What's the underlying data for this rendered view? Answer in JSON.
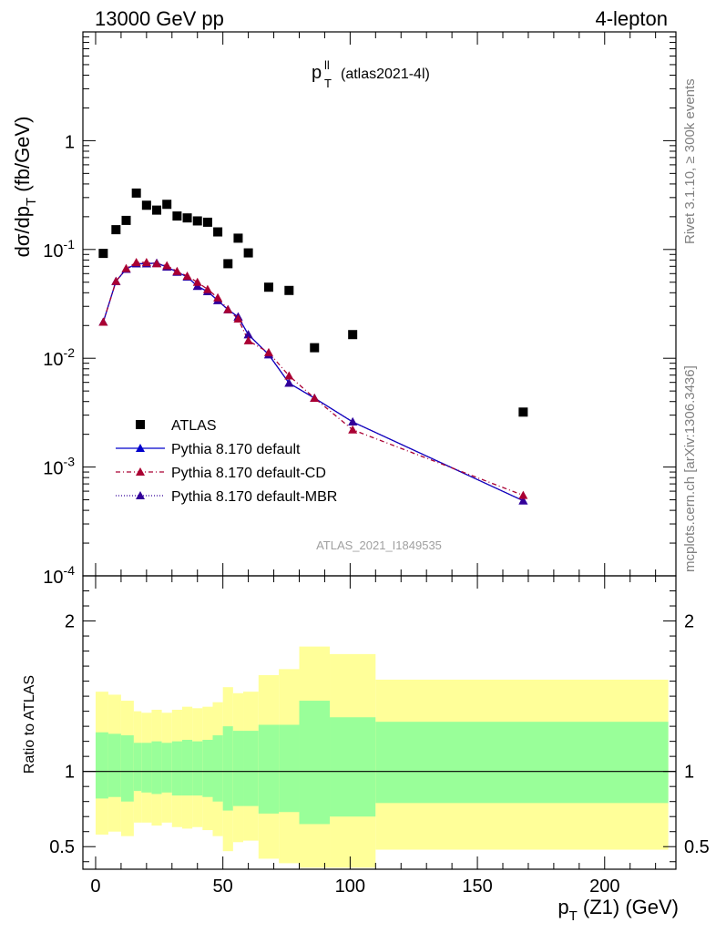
{
  "header": {
    "left": "13000 GeV pp",
    "right": "4-lepton"
  },
  "plot_title": {
    "main": "p",
    "sup": "ll",
    "sub": "T",
    "tag": "(atlas2021-4l)"
  },
  "side_labels": {
    "rivet": "Rivet 3.1.10, ≥ 300k events",
    "mcplots": "mcplots.cern.ch [arXiv:1306.3436]"
  },
  "watermark": "ATLAS_2021_I1849535",
  "axes": {
    "top_ylabel": "dσ/dp_T (fb/GeV)",
    "ratio_ylabel": "Ratio to ATLAS",
    "xlabel": "p_T(Z1) (GeV)",
    "top_ytick_labels": {
      "1": "1",
      "0.1": "10^-1",
      "0.01": "10^-2",
      "0.001": "10^-3",
      "0.0001": "10^-4"
    }
  },
  "colors": {
    "data": "#000000",
    "default": "#0000cc",
    "cd": "#aa0033",
    "mbr": "#330099",
    "band_inner": "#99ff99",
    "band_outer": "#ffff99"
  },
  "legend": [
    {
      "key": "data",
      "label": "ATLAS"
    },
    {
      "key": "default",
      "label": "Pythia 8.170 default"
    },
    {
      "key": "cd",
      "label": "Pythia 8.170 default-CD"
    },
    {
      "key": "mbr",
      "label": "Pythia 8.170 default-MBR"
    }
  ],
  "chart_data": [
    {
      "type": "scatter",
      "panel": "main",
      "yscale": "log",
      "xlim": [
        -5,
        228
      ],
      "ylim": [
        0.0001,
        10
      ],
      "xticks": [
        0,
        50,
        100,
        150,
        200
      ],
      "yticks": [
        0.0001,
        0.001,
        0.01,
        0.1,
        1
      ],
      "series": [
        {
          "name": "ATLAS",
          "x": [
            3,
            8,
            12,
            16,
            20,
            24,
            28,
            32,
            36,
            40,
            44,
            48,
            52,
            56,
            60,
            68,
            76,
            86,
            101,
            168
          ],
          "y": [
            0.092,
            0.152,
            0.185,
            0.33,
            0.255,
            0.23,
            0.26,
            0.203,
            0.195,
            0.183,
            0.178,
            0.145,
            0.074,
            0.127,
            0.093,
            0.045,
            0.042,
            0.0125,
            0.0165,
            0.0032
          ]
        },
        {
          "name": "Pythia 8.170 default",
          "x": [
            3,
            8,
            12,
            16,
            20,
            24,
            28,
            32,
            36,
            40,
            44,
            48,
            52,
            56,
            60,
            68,
            76,
            86,
            101,
            168
          ],
          "y": [
            0.0215,
            0.051,
            0.066,
            0.074,
            0.074,
            0.075,
            0.069,
            0.062,
            0.056,
            0.046,
            0.041,
            0.034,
            0.028,
            0.024,
            0.0165,
            0.0108,
            0.0059,
            0.0043,
            0.0026,
            0.00049
          ]
        },
        {
          "name": "Pythia 8.170 default-CD",
          "x": [
            3,
            8,
            12,
            16,
            20,
            24,
            28,
            32,
            36,
            40,
            44,
            48,
            52,
            56,
            60,
            68,
            76,
            86,
            101,
            168
          ],
          "y": [
            0.0215,
            0.051,
            0.067,
            0.076,
            0.076,
            0.074,
            0.071,
            0.063,
            0.057,
            0.05,
            0.043,
            0.036,
            0.028,
            0.023,
            0.0145,
            0.0113,
            0.0069,
            0.0043,
            0.0022,
            0.00055
          ]
        },
        {
          "name": "Pythia 8.170 default-MBR",
          "x": [
            3,
            8,
            12,
            16,
            20,
            24,
            28,
            32,
            36,
            40,
            44,
            48,
            52,
            56,
            60,
            68,
            76,
            86,
            101,
            168
          ],
          "y": [
            0.0215,
            0.051,
            0.066,
            0.074,
            0.074,
            0.075,
            0.069,
            0.062,
            0.056,
            0.046,
            0.041,
            0.034,
            0.028,
            0.024,
            0.0165,
            0.0108,
            0.0059,
            0.0043,
            0.0026,
            0.00049
          ]
        }
      ]
    },
    {
      "type": "area",
      "panel": "ratio",
      "xlim": [
        -5,
        228
      ],
      "ylim": [
        0.35,
        2.3
      ],
      "yticks": [
        0.5,
        1,
        2
      ],
      "ytick_labels": [
        "0.5",
        "1",
        "2"
      ],
      "reference_line": 1,
      "bins": [
        {
          "lo": 0,
          "hi": 5,
          "inner": [
            0.82,
            1.26
          ],
          "outer": [
            0.58,
            1.53
          ]
        },
        {
          "lo": 5,
          "hi": 10,
          "inner": [
            0.83,
            1.25
          ],
          "outer": [
            0.6,
            1.51
          ]
        },
        {
          "lo": 10,
          "hi": 15,
          "inner": [
            0.8,
            1.24
          ],
          "outer": [
            0.57,
            1.47
          ]
        },
        {
          "lo": 15,
          "hi": 18,
          "inner": [
            0.87,
            1.19
          ],
          "outer": [
            0.66,
            1.4
          ]
        },
        {
          "lo": 18,
          "hi": 22,
          "inner": [
            0.86,
            1.19
          ],
          "outer": [
            0.66,
            1.39
          ]
        },
        {
          "lo": 22,
          "hi": 26,
          "inner": [
            0.85,
            1.2
          ],
          "outer": [
            0.64,
            1.41
          ]
        },
        {
          "lo": 26,
          "hi": 30,
          "inner": [
            0.86,
            1.19
          ],
          "outer": [
            0.66,
            1.39
          ]
        },
        {
          "lo": 30,
          "hi": 34,
          "inner": [
            0.84,
            1.2
          ],
          "outer": [
            0.63,
            1.41
          ]
        },
        {
          "lo": 34,
          "hi": 38,
          "inner": [
            0.84,
            1.21
          ],
          "outer": [
            0.62,
            1.43
          ]
        },
        {
          "lo": 38,
          "hi": 42,
          "inner": [
            0.84,
            1.2
          ],
          "outer": [
            0.63,
            1.42
          ]
        },
        {
          "lo": 42,
          "hi": 46,
          "inner": [
            0.83,
            1.21
          ],
          "outer": [
            0.61,
            1.43
          ]
        },
        {
          "lo": 46,
          "hi": 50,
          "inner": [
            0.8,
            1.24
          ],
          "outer": [
            0.57,
            1.46
          ]
        },
        {
          "lo": 50,
          "hi": 54,
          "inner": [
            0.74,
            1.3
          ],
          "outer": [
            0.47,
            1.56
          ]
        },
        {
          "lo": 54,
          "hi": 58,
          "inner": [
            0.77,
            1.27
          ],
          "outer": [
            0.53,
            1.52
          ]
        },
        {
          "lo": 58,
          "hi": 64,
          "inner": [
            0.77,
            1.27
          ],
          "outer": [
            0.54,
            1.53
          ]
        },
        {
          "lo": 64,
          "hi": 72,
          "inner": [
            0.72,
            1.31
          ],
          "outer": [
            0.42,
            1.64
          ]
        },
        {
          "lo": 72,
          "hi": 80,
          "inner": [
            0.73,
            1.31
          ],
          "outer": [
            0.39,
            1.68
          ]
        },
        {
          "lo": 80,
          "hi": 92,
          "inner": [
            0.65,
            1.47
          ],
          "outer": [
            0.36,
            1.83
          ]
        },
        {
          "lo": 92,
          "hi": 110,
          "inner": [
            0.7,
            1.36
          ],
          "outer": [
            0.36,
            1.78
          ]
        },
        {
          "lo": 110,
          "hi": 225,
          "inner": [
            0.79,
            1.33
          ],
          "outer": [
            0.48,
            1.61
          ]
        }
      ]
    }
  ]
}
